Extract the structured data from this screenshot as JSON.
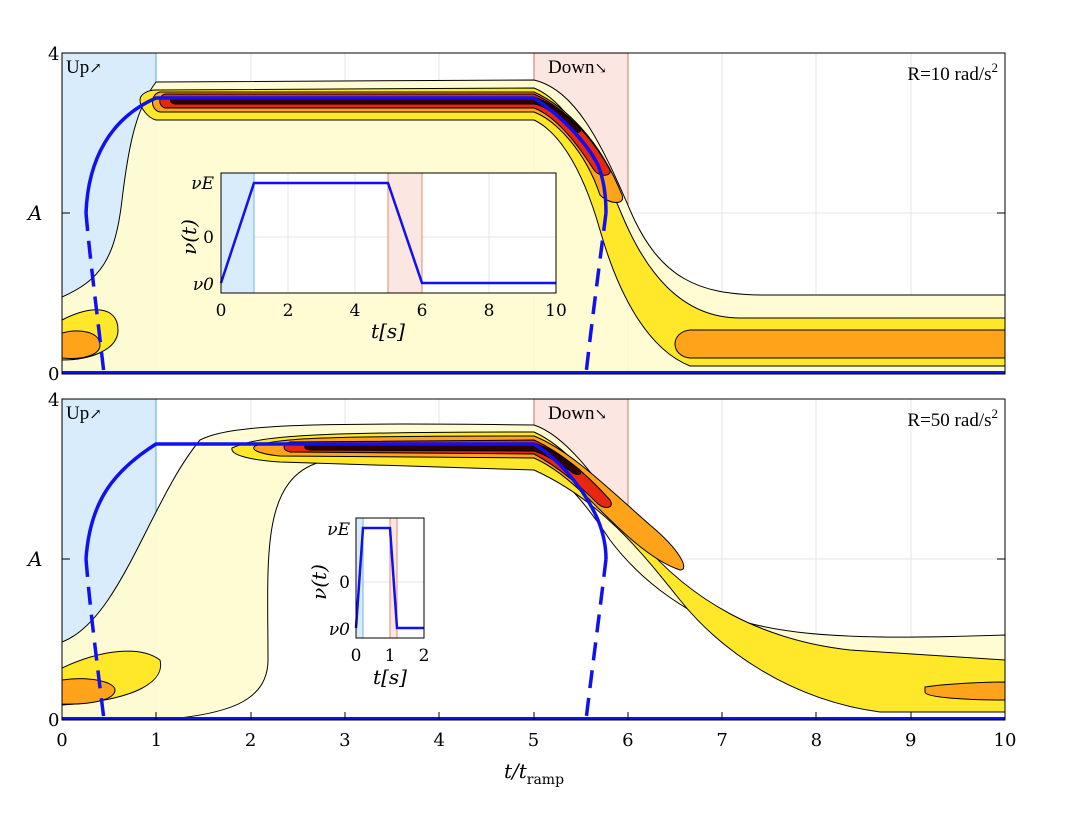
{
  "chart_data": {
    "type": "contour",
    "shared_xlabel": "t/t",
    "shared_xlabel_sub": "ramp",
    "x_ticks": [
      "0",
      "1",
      "2",
      "3",
      "4",
      "5",
      "6",
      "7",
      "8",
      "9",
      "10"
    ],
    "xlim": [
      0,
      10
    ],
    "panels": [
      {
        "id": "top",
        "ylabel": "A",
        "ylim": [
          0,
          4
        ],
        "y_ticks": [
          "0",
          "",
          "4"
        ],
        "rate_label": "R=10 rad/s",
        "rate_sup": "2",
        "up_label": "Up",
        "up_arrow": "↗",
        "down_label": "Down",
        "down_arrow": "↘",
        "up_band": [
          0,
          1
        ],
        "down_band": [
          5,
          6
        ],
        "branch_stable": [
          [
            0.25,
            2.0
          ],
          [
            0.4,
            2.6
          ],
          [
            0.7,
            2.95
          ],
          [
            1.0,
            3.35
          ],
          [
            2,
            3.35
          ],
          [
            3,
            3.35
          ],
          [
            4,
            3.35
          ],
          [
            5,
            3.35
          ],
          [
            5.3,
            3.1
          ],
          [
            5.6,
            2.8
          ],
          [
            5.8,
            2.45
          ],
          [
            5.9,
            2.0
          ]
        ],
        "branch_unstable_up": [
          [
            0.25,
            2.0
          ],
          [
            0.3,
            1.5
          ],
          [
            0.37,
            0.9
          ],
          [
            0.43,
            0.3
          ],
          [
            0.45,
            0.0
          ]
        ],
        "branch_unstable_down": [
          [
            5.9,
            2.0
          ],
          [
            5.8,
            1.4
          ],
          [
            5.68,
            0.7
          ],
          [
            5.57,
            0.0
          ]
        ],
        "trivial_branch": [
          [
            0,
            0
          ],
          [
            0.45,
            0
          ],
          [
            5.57,
            0
          ],
          [
            10,
            0
          ]
        ],
        "inset": {
          "xlabel": "t[s]",
          "ylabel": "ν(t)",
          "x_ticks": [
            "0",
            "2",
            "4",
            "6",
            "8",
            "10"
          ],
          "y_ticks": [
            "ν0",
            "0",
            "νE"
          ],
          "xlim": [
            0,
            10
          ],
          "nu_profile": [
            [
              0,
              0
            ],
            [
              1,
              1
            ],
            [
              5,
              1
            ],
            [
              6,
              0
            ],
            [
              10,
              0
            ]
          ],
          "up_band": [
            0,
            1
          ],
          "down_band": [
            5,
            6
          ]
        }
      },
      {
        "id": "bottom",
        "ylabel": "A",
        "ylim": [
          0,
          4
        ],
        "y_ticks": [
          "0",
          "",
          "4"
        ],
        "rate_label": "R=50 rad/s",
        "rate_sup": "2",
        "up_label": "Up",
        "up_arrow": "↗",
        "down_label": "Down",
        "down_arrow": "↘",
        "up_band": [
          0,
          1
        ],
        "down_band": [
          5,
          6
        ],
        "branch_stable": [
          [
            0.25,
            2.0
          ],
          [
            0.4,
            2.6
          ],
          [
            0.7,
            3.15
          ],
          [
            1.0,
            3.45
          ],
          [
            2,
            3.45
          ],
          [
            3,
            3.45
          ],
          [
            4,
            3.45
          ],
          [
            5,
            3.45
          ],
          [
            5.3,
            3.2
          ],
          [
            5.6,
            2.8
          ],
          [
            5.78,
            2.35
          ],
          [
            5.85,
            2.0
          ]
        ],
        "branch_unstable_up": [
          [
            0.25,
            2.0
          ],
          [
            0.3,
            1.5
          ],
          [
            0.37,
            0.9
          ],
          [
            0.43,
            0.3
          ],
          [
            0.45,
            0.0
          ]
        ],
        "branch_unstable_down": [
          [
            5.85,
            2.0
          ],
          [
            5.77,
            1.4
          ],
          [
            5.67,
            0.7
          ],
          [
            5.55,
            0.0
          ]
        ],
        "trivial_branch": [
          [
            0,
            0
          ],
          [
            0.45,
            0
          ],
          [
            5.55,
            0
          ],
          [
            10,
            0
          ]
        ],
        "inset": {
          "xlabel": "t[s]",
          "ylabel": "ν(t)",
          "x_ticks": [
            "0",
            "1",
            "2"
          ],
          "y_ticks": [
            "ν0",
            "0",
            "νE"
          ],
          "xlim": [
            0,
            2
          ],
          "nu_profile": [
            [
              0,
              0
            ],
            [
              0.2,
              1
            ],
            [
              1.0,
              1
            ],
            [
              1.2,
              0
            ],
            [
              2,
              0
            ]
          ],
          "up_band": [
            0,
            0.2
          ],
          "down_band": [
            1.0,
            1.2
          ]
        }
      }
    ],
    "colors": {
      "up_band": "#d9ecfb",
      "up_edge": "#6fb6e0",
      "down_band": "#fbe6e2",
      "down_edge": "#e08a6c",
      "branch": "#1010f0",
      "level1": "#fffcd2",
      "level2": "#ffe82a",
      "level3": "#ffa41a",
      "level4": "#e8280e",
      "level5": "#2a0000"
    }
  }
}
